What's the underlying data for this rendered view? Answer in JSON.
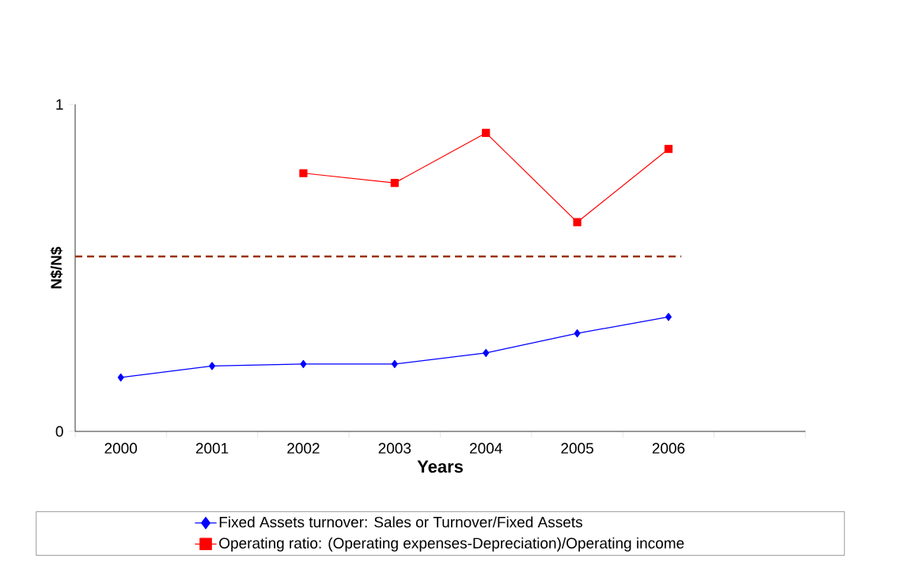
{
  "chart_data": {
    "type": "line",
    "xlabel": "Years",
    "ylabel": "N$/N$",
    "categories": [
      "2000",
      "2001",
      "2002",
      "2003",
      "2004",
      "2005",
      "2006",
      null
    ],
    "series": [
      {
        "name": "Fixed Assets turnover:  Sales or Turnover/Fixed Assets",
        "color": "#0000ff",
        "marker": "diamond",
        "values": [
          0.165,
          0.2,
          0.206,
          0.206,
          0.24,
          0.3,
          0.35,
          null
        ]
      },
      {
        "name": "Operating ratio:  (Operating expenses-Depreciation)/Operating income",
        "color": "#ff0000",
        "marker": "square",
        "values": [
          null,
          null,
          0.79,
          0.76,
          0.913,
          0.64,
          0.864,
          null
        ]
      }
    ],
    "ref_lines": [
      {
        "axis": "y",
        "value": 0.535,
        "color": "#993300",
        "line_style": "dashed"
      }
    ],
    "ylim": [
      0,
      1
    ],
    "yticks": [
      0,
      1
    ],
    "legend": "bottom"
  }
}
